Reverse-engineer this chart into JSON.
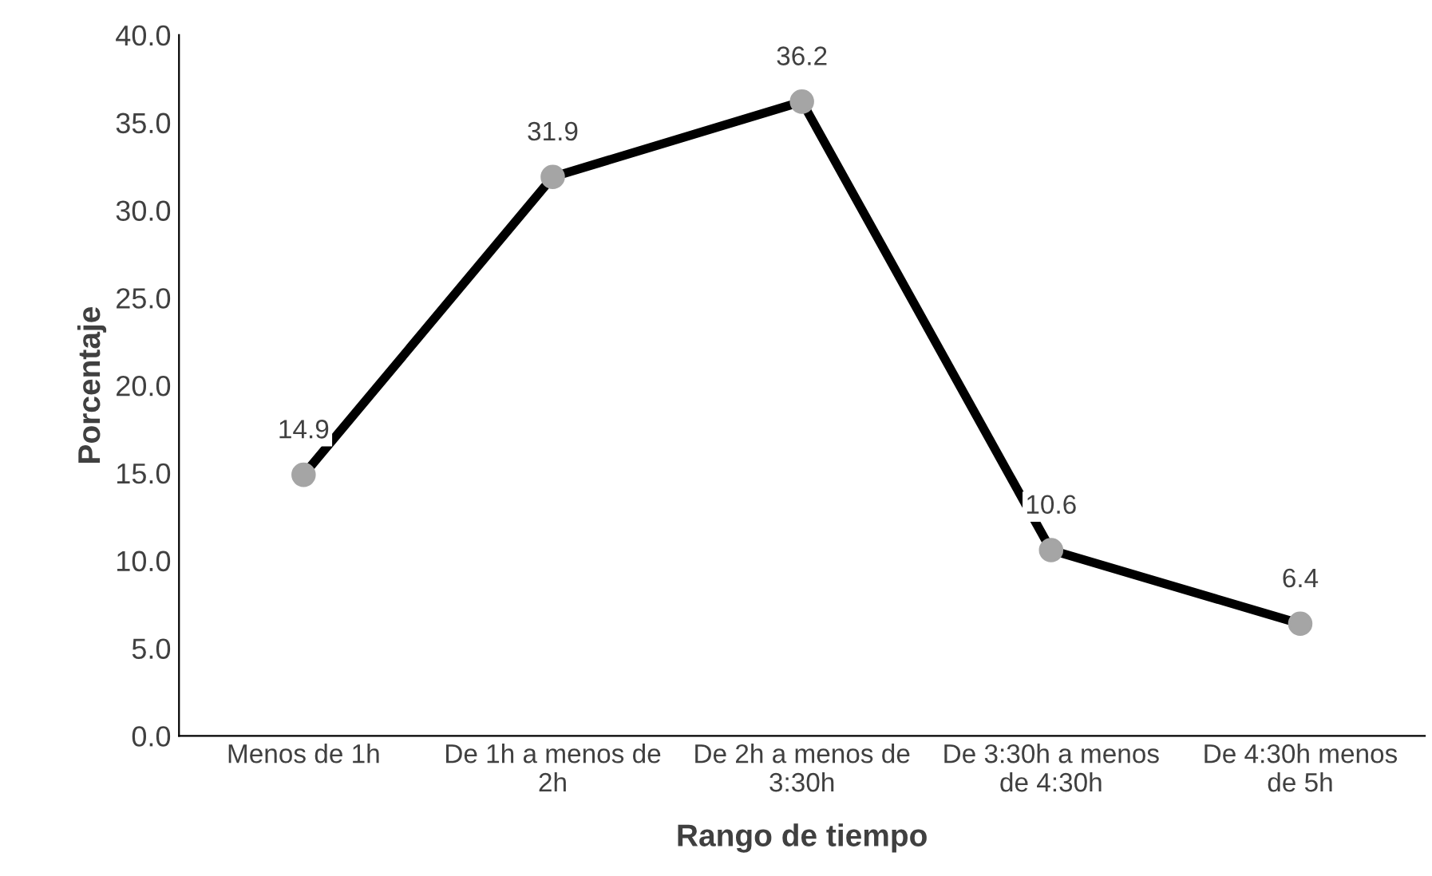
{
  "chart_data": {
    "type": "line",
    "xlabel": "Rango de tiempo",
    "ylabel": "Porcentaje",
    "categories": [
      "Menos de 1h",
      "De 1h a menos de\n2h",
      "De 2h a menos de\n3:30h",
      "De 3:30h a menos\nde 4:30h",
      "De 4:30h menos\nde 5h"
    ],
    "series": [
      {
        "color": "#000000",
        "colors": [
          "#a5a5a5",
          "#a5a5a5",
          "#a5a5a5",
          "#a5a5a5",
          "#a5a5a5"
        ],
        "values": [
          14.9,
          31.9,
          36.2,
          10.6,
          6.4
        ]
      }
    ],
    "ylim": [
      0,
      40
    ],
    "yticks": [
      {
        "value": 0,
        "label": "0.0"
      },
      {
        "value": 5,
        "label": "5.0"
      },
      {
        "value": 10,
        "label": "10.0"
      },
      {
        "value": 15,
        "label": "15.0"
      },
      {
        "value": 20,
        "label": "20.0"
      },
      {
        "value": 25,
        "label": "25.0"
      },
      {
        "value": 30,
        "label": "30.0"
      },
      {
        "value": 35,
        "label": "35.0"
      },
      {
        "value": 40,
        "label": "40.0"
      }
    ],
    "grid": false,
    "legend": false,
    "marker": "circle",
    "line_style": "solid",
    "data_labels": true
  }
}
